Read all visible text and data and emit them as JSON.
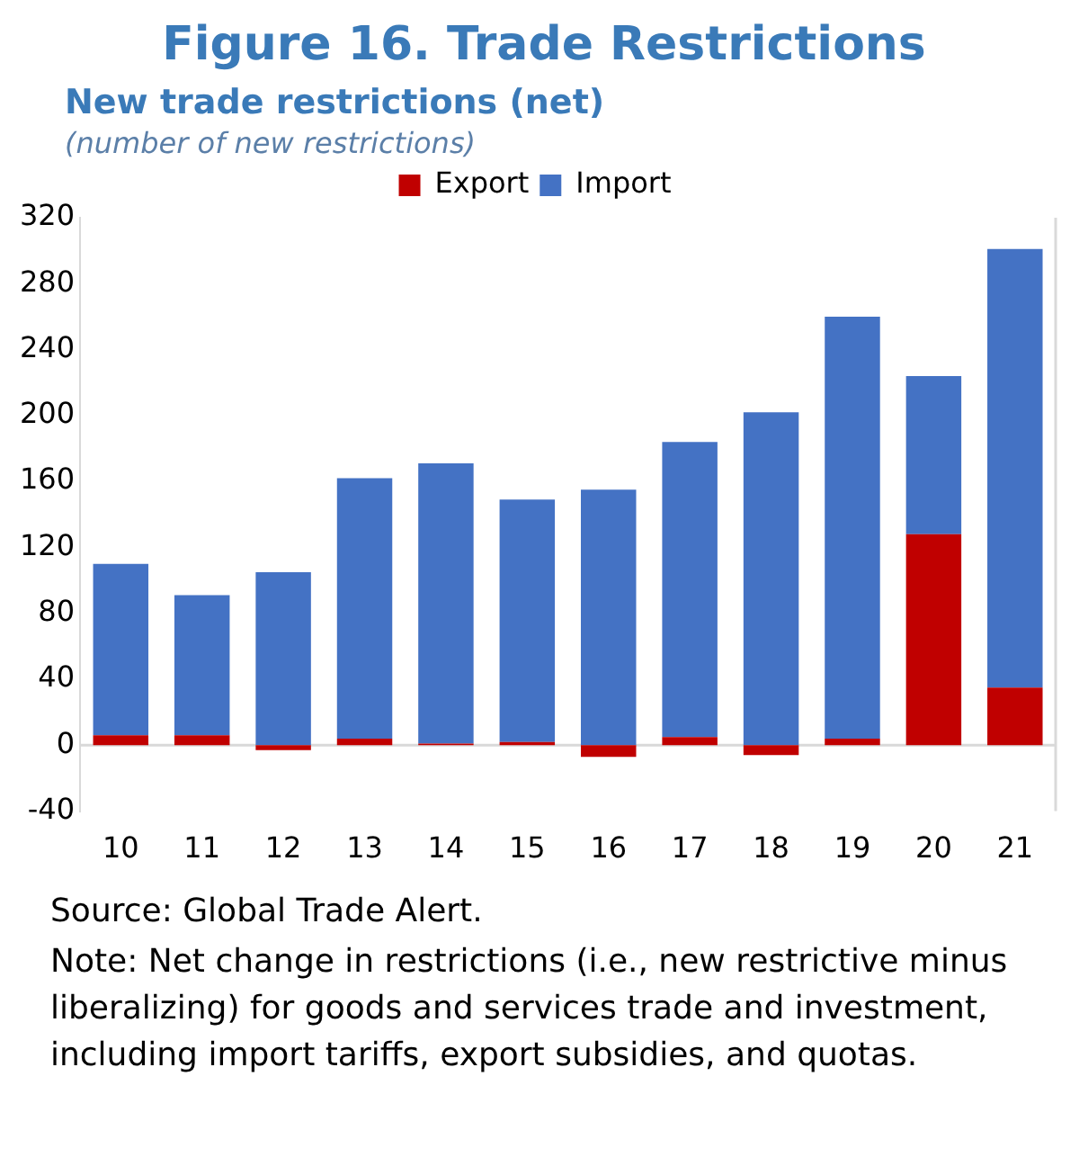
{
  "chart_data": {
    "type": "bar",
    "title": "Figure 16. Trade Restrictions",
    "subtitle": "New trade restrictions (net)",
    "ylabel": "(number of new restrictions)",
    "categories": [
      "10",
      "11",
      "12",
      "13",
      "14",
      "15",
      "16",
      "17",
      "18",
      "19",
      "20",
      "21"
    ],
    "stacked": true,
    "series": [
      {
        "name": "Export",
        "color": "#c00000",
        "values": [
          6,
          6,
          -3,
          4,
          1,
          2,
          -7,
          5,
          -6,
          4,
          128,
          35
        ]
      },
      {
        "name": "Import",
        "color": "#4472c4",
        "values": [
          104,
          85,
          105,
          158,
          170,
          147,
          155,
          179,
          202,
          256,
          96,
          266
        ]
      }
    ],
    "ylim": [
      -40,
      320
    ],
    "yticks": [
      -40,
      0,
      40,
      80,
      120,
      160,
      200,
      240,
      280,
      320
    ],
    "grid": false,
    "ref_lines": [
      {
        "axis": "y",
        "value": 0,
        "color": "#d9d9d9"
      }
    ],
    "legend": "top",
    "annotations": [
      "Source: Global Trade Alert.",
      "Note: Net change in restrictions (i.e., new restrictive minus liberalizing) for goods and services trade and investment, including import tariffs, export subsidies, and quotas."
    ]
  }
}
